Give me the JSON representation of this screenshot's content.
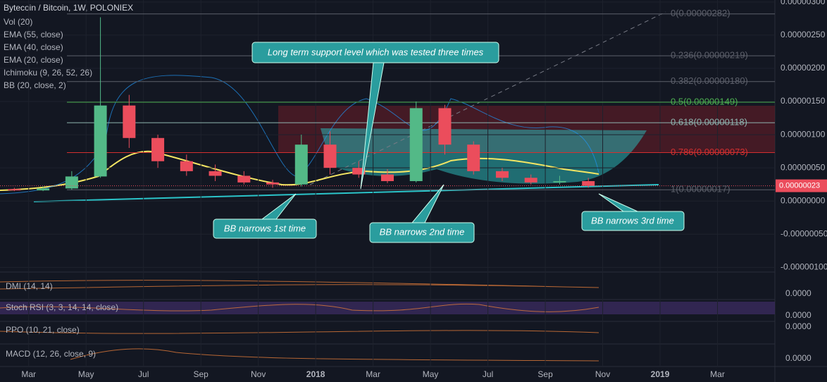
{
  "chart_data": {
    "type": "candlestick",
    "title": "Bytecoin / Bitcoin, 1W, POLONIEX",
    "indicators": [
      "Vol (20)",
      "EMA (55, close)",
      "EMA (40, close)",
      "EMA (20, close)",
      "Ichimoku (9, 26, 52, 26)",
      "BB (20, close, 2)"
    ],
    "x": [
      "2017-02",
      "2017-03",
      "2017-04",
      "2017-05",
      "2017-06",
      "2017-07",
      "2017-08",
      "2017-09",
      "2017-10",
      "2017-11",
      "2017-12",
      "2018-01",
      "2018-02",
      "2018-03",
      "2018-04",
      "2018-05",
      "2018-06",
      "2018-07",
      "2018-08",
      "2018-09",
      "2018-10"
    ],
    "open": [
      1.8e-07,
      1.6e-07,
      1.9e-07,
      3.7e-07,
      1.44e-06,
      9.5e-07,
      6e-07,
      4.5e-07,
      3.8e-07,
      2.8e-07,
      2.5e-07,
      8.5e-07,
      5e-07,
      4e-07,
      3e-07,
      1.4e-06,
      8.5e-07,
      4.5e-07,
      3.5e-07,
      2.8e-07,
      3e-07
    ],
    "high": [
      2e-07,
      2.2e-07,
      4.5e-07,
      2.77e-06,
      1.6e-06,
      1e-06,
      7e-07,
      5.5e-07,
      4.5e-07,
      3.2e-07,
      1e-06,
      1.05e-06,
      6e-07,
      4.8e-07,
      1.5e-06,
      1.45e-06,
      9e-07,
      5e-07,
      4e-07,
      3.8e-07,
      3.5e-07
    ],
    "low": [
      1.5e-07,
      1.5e-07,
      1.7e-07,
      3.5e-07,
      8e-07,
      5e-07,
      3.8e-07,
      3e-07,
      2.5e-07,
      2e-07,
      2.2e-07,
      4e-07,
      3.5e-07,
      2.7e-07,
      2.8e-07,
      7e-07,
      4e-07,
      3e-07,
      2.5e-07,
      2.5e-07,
      2e-07
    ],
    "close": [
      1.6e-07,
      1.9e-07,
      3.7e-07,
      1.44e-06,
      9.5e-07,
      6e-07,
      4.5e-07,
      3.8e-07,
      2.8e-07,
      2.5e-07,
      8.5e-07,
      5e-07,
      4e-07,
      3e-07,
      1.4e-06,
      8.5e-07,
      4.5e-07,
      3.5e-07,
      2.8e-07,
      3e-07,
      2.3e-07
    ],
    "up_color": "#53b987",
    "down_color": "#eb4d5c",
    "ylim": [
      -1.06e-06,
      3.03e-06
    ],
    "yticks": [
      {
        "value": 3e-06,
        "label": "0.00000300"
      },
      {
        "value": 2.5e-06,
        "label": "0.00000250"
      },
      {
        "value": 2e-06,
        "label": "0.00000200"
      },
      {
        "value": 1.5e-06,
        "label": "0.00000150"
      },
      {
        "value": 1e-06,
        "label": "0.00000100"
      },
      {
        "value": 5e-07,
        "label": "0.00000050"
      },
      {
        "value": 0,
        "label": "0.00000000"
      },
      {
        "value": -5e-07,
        "label": "-0.00000050"
      },
      {
        "value": -1e-06,
        "label": "-0.00000100"
      }
    ],
    "xlim": [
      "2017-02",
      "2019-05"
    ],
    "xticks": [
      {
        "value": "2017-03",
        "label": "Mar"
      },
      {
        "value": "2017-05",
        "label": "May"
      },
      {
        "value": "2017-07",
        "label": "Jul"
      },
      {
        "value": "2017-09",
        "label": "Sep"
      },
      {
        "value": "2017-11",
        "label": "Nov"
      },
      {
        "value": "2018-01",
        "label": "2018"
      },
      {
        "value": "2018-03",
        "label": "Mar"
      },
      {
        "value": "2018-05",
        "label": "May"
      },
      {
        "value": "2018-07",
        "label": "Jul"
      },
      {
        "value": "2018-09",
        "label": "Sep"
      },
      {
        "value": "2018-11",
        "label": "Nov"
      },
      {
        "value": "2019-01",
        "label": "2019"
      },
      {
        "value": "2019-03",
        "label": "Mar"
      }
    ],
    "last_price": {
      "value": 2.3e-07,
      "label": "0.00000023"
    },
    "fib_levels": [
      {
        "label": "0(0.00000282)",
        "price": 2.82e-06,
        "color": "#5d606b"
      },
      {
        "label": "0.236(0.00000219)",
        "price": 2.19e-06,
        "color": "#5d606b"
      },
      {
        "label": "0.382(0.00000180)",
        "price": 1.8e-06,
        "color": "#5d606b"
      },
      {
        "label": "0.5(0.00000149)",
        "price": 1.49e-06,
        "color": "#4caf50"
      },
      {
        "label": "0.618(0.00000118)",
        "price": 1.18e-06,
        "color": "#8fb5b0"
      },
      {
        "label": "0.786(0.00000073)",
        "price": 7.3e-07,
        "color": "#d32f2f"
      },
      {
        "label": "1(0.00000017)",
        "price": 1.7e-07,
        "color": "#5d606b"
      }
    ],
    "panes": [
      {
        "label": "DMI (14, 14)",
        "tick": {
          "value": 0,
          "label": "0.0000"
        }
      },
      {
        "label": "Stoch RSI (3, 3, 14, 14, close)",
        "tick": {
          "value": 0,
          "label": "0.0000"
        }
      },
      {
        "label": "PPO (10, 21, close)",
        "tick": {
          "value": 0,
          "label": "0.0000"
        }
      },
      {
        "label": "MACD (12, 26, close, 9)",
        "tick": {
          "value": 0,
          "label": "0.0000"
        }
      }
    ],
    "annotations": [
      "Long term support level which was tested three times",
      "BB narrows 1st time",
      "BB narrows 2nd time",
      "BB narrows 3rd time"
    ]
  }
}
